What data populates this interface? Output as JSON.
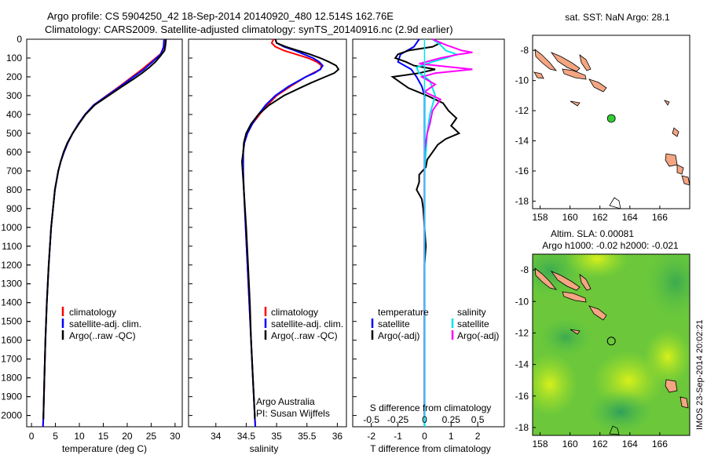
{
  "title": {
    "line1": "Argo profile: CS 5904250_42 18-Sep-2014 20140920_480 12.514S 162.76E",
    "line2": "Climatology: CARS2009. Satellite-adjusted climatology: synTS_20140916.nc (2.9d earlier)"
  },
  "colors": {
    "clim": "#ff0000",
    "sat": "#0000ff",
    "argo": "#000000",
    "sat_s": "#00e5ee",
    "argo_s": "#ff00ff",
    "land": "#f4a582"
  },
  "depth_ticks": [
    "0",
    "100",
    "200",
    "300",
    "400",
    "500",
    "600",
    "700",
    "800",
    "900",
    "1000",
    "1100",
    "1200",
    "1300",
    "1400",
    "1500",
    "1600",
    "1700",
    "1800",
    "1900",
    "2000"
  ],
  "chart_data": [
    {
      "type": "line",
      "id": "temperature",
      "xlabel": "temperature (deg C)",
      "ylabel": "depth",
      "xlim": [
        -1,
        31.5
      ],
      "ylim": [
        2060,
        0
      ],
      "xticks": [
        0,
        5,
        10,
        15,
        20,
        25,
        30
      ],
      "series": [
        {
          "name": "climatology",
          "color": "clim",
          "depth": [
            0,
            40,
            80,
            120,
            160,
            200,
            250,
            300,
            350,
            400,
            450,
            500,
            550,
            600,
            650,
            700,
            800,
            900,
            1000,
            1200,
            1400,
            1600,
            1800,
            2000,
            2060
          ],
          "values": [
            27.9,
            27.8,
            26.9,
            25.0,
            23.1,
            21.0,
            18.4,
            15.7,
            13.0,
            11.2,
            9.8,
            8.6,
            7.6,
            6.8,
            6.1,
            5.6,
            4.9,
            4.5,
            4.1,
            3.6,
            3.2,
            2.9,
            2.7,
            2.5,
            2.4
          ]
        },
        {
          "name": "satellite-adj. clim.",
          "color": "sat",
          "depth": [
            0,
            40,
            80,
            120,
            160,
            200,
            250,
            300,
            350,
            400,
            450,
            500,
            550,
            600,
            650,
            700,
            800,
            900,
            1000,
            1200,
            1400,
            1600,
            1800,
            2000,
            2060
          ],
          "values": [
            27.7,
            27.6,
            27.0,
            25.3,
            23.5,
            21.3,
            18.6,
            15.8,
            13.0,
            11.2,
            9.8,
            8.6,
            7.6,
            6.8,
            6.1,
            5.6,
            4.9,
            4.5,
            4.1,
            3.6,
            3.2,
            2.9,
            2.7,
            2.5,
            2.4
          ]
        },
        {
          "name": "Argo(..raw -QC)",
          "color": "argo",
          "depth": [
            0,
            30,
            60,
            90,
            120,
            150,
            180,
            210,
            250,
            300,
            350,
            400,
            450,
            500,
            550,
            600,
            650,
            700,
            800,
            900,
            1000,
            1200,
            1400,
            1600,
            1800,
            2000,
            2020
          ],
          "values": [
            28.1,
            28.0,
            27.8,
            26.9,
            25.9,
            24.6,
            23.1,
            21.4,
            19.0,
            16.1,
            13.2,
            11.3,
            9.9,
            8.6,
            7.5,
            6.7,
            6.1,
            5.6,
            4.9,
            4.5,
            4.1,
            3.6,
            3.2,
            2.9,
            2.7,
            2.5,
            2.5
          ]
        }
      ],
      "legend": [
        "climatology",
        "satellite-adj. clim.",
        "Argo(..raw -QC)"
      ]
    },
    {
      "type": "line",
      "id": "salinity",
      "xlabel": "salinity",
      "xlim": [
        33.55,
        36.15
      ],
      "ylim": [
        2060,
        0
      ],
      "xticks": [
        34,
        34.5,
        35,
        35.5,
        36
      ],
      "series": [
        {
          "name": "climatology",
          "color": "clim",
          "depth": [
            0,
            20,
            40,
            60,
            80,
            100,
            120,
            140,
            160,
            180,
            200,
            250,
            300,
            350,
            400,
            450,
            500,
            550,
            600,
            700,
            800,
            1000,
            1200,
            1400,
            1600,
            1800,
            2000,
            2060
          ],
          "values": [
            34.95,
            34.92,
            34.98,
            35.12,
            35.32,
            35.52,
            35.66,
            35.74,
            35.72,
            35.6,
            35.48,
            35.23,
            35.0,
            34.85,
            34.72,
            34.6,
            34.52,
            34.47,
            34.45,
            34.45,
            34.46,
            34.49,
            34.52,
            34.55,
            34.58,
            34.61,
            34.64,
            34.65
          ]
        },
        {
          "name": "satellite-adj. clim.",
          "color": "sat",
          "depth": [
            0,
            20,
            40,
            60,
            80,
            100,
            120,
            140,
            160,
            180,
            200,
            250,
            300,
            350,
            400,
            450,
            500,
            550,
            600,
            700,
            800,
            1000,
            1200,
            1400,
            1600,
            1800,
            2000,
            2060
          ],
          "values": [
            34.98,
            35.0,
            35.12,
            35.3,
            35.45,
            35.6,
            35.7,
            35.76,
            35.72,
            35.62,
            35.48,
            35.2,
            34.98,
            34.82,
            34.7,
            34.6,
            34.52,
            34.47,
            34.45,
            34.45,
            34.46,
            34.49,
            34.52,
            34.55,
            34.58,
            34.61,
            34.64,
            34.65
          ]
        },
        {
          "name": "Argo(..raw -QC)",
          "color": "argo",
          "depth": [
            0,
            20,
            40,
            60,
            80,
            100,
            120,
            140,
            160,
            180,
            200,
            230,
            260,
            300,
            350,
            400,
            450,
            500,
            550,
            600,
            650,
            700,
            800,
            900,
            1000,
            1200,
            1400,
            1600,
            1800,
            2000,
            2020
          ],
          "values": [
            34.98,
            35.0,
            35.15,
            35.35,
            35.55,
            35.72,
            35.86,
            35.98,
            36.02,
            35.95,
            35.8,
            35.58,
            35.38,
            35.12,
            34.88,
            34.7,
            34.58,
            34.5,
            34.46,
            34.45,
            34.43,
            34.44,
            34.46,
            34.48,
            34.5,
            34.53,
            34.56,
            34.58,
            34.61,
            34.64,
            34.64
          ]
        }
      ],
      "legend": [
        "climatology",
        "satellite-adj. clim.",
        "Argo(..raw -QC)"
      ],
      "annotation": [
        "Argo Australia",
        "PI: Susan Wijffels"
      ]
    },
    {
      "type": "line",
      "id": "difference",
      "xlabel": "T difference from climatology",
      "xlabel_top": "S difference from climatology",
      "xlim": [
        -2.7,
        3.0
      ],
      "ylim": [
        2060,
        0
      ],
      "xticks": [
        -2,
        -1,
        0,
        1,
        2
      ],
      "top_ticks": [
        "-0.5",
        "-0.25",
        "0",
        "0.25",
        "0.5"
      ],
      "top_tick_pos": [
        -2,
        -1,
        0,
        1,
        2
      ],
      "series": [
        {
          "name": "satellite",
          "group": "temperature",
          "color": "sat",
          "depth": [
            0,
            40,
            80,
            120,
            160,
            200,
            250,
            300,
            400,
            500,
            600,
            700,
            800,
            1000,
            1500,
            2000,
            2060
          ],
          "values": [
            -0.2,
            -0.4,
            -0.9,
            -1.0,
            -0.5,
            -0.3,
            -0.1,
            0.0,
            0.0,
            0.0,
            0.0,
            0.0,
            0.0,
            0.0,
            0.0,
            0.0,
            0.0
          ]
        },
        {
          "name": "Argo(-adj)",
          "group": "temperature",
          "color": "argo",
          "depth": [
            0,
            20,
            40,
            60,
            80,
            100,
            120,
            140,
            160,
            180,
            200,
            230,
            260,
            300,
            340,
            380,
            420,
            460,
            500,
            530,
            560,
            600,
            640,
            680,
            720,
            760,
            800,
            850,
            900,
            1000,
            1100,
            1200,
            1500,
            1800,
            2000
          ],
          "values": [
            0.3,
            0.6,
            0.3,
            -0.6,
            -1.0,
            -1.1,
            -0.7,
            -0.4,
            0.4,
            -0.2,
            -1.2,
            -0.9,
            -0.6,
            0.1,
            0.7,
            0.9,
            1.2,
            1.0,
            1.3,
            0.8,
            0.5,
            0.3,
            0.1,
            0.05,
            -0.2,
            -0.2,
            -0.3,
            -0.1,
            -0.05,
            0.0,
            0.05,
            0.0,
            0.0,
            0.0,
            0.0
          ]
        },
        {
          "name": "satellite",
          "group": "salinity",
          "color": "sat_s",
          "depth": [
            0,
            30,
            60,
            80,
            100,
            120,
            150,
            180,
            220,
            260,
            300,
            350,
            400,
            500,
            700,
            1000,
            1500,
            2000,
            2060
          ],
          "values": [
            0.3,
            0.6,
            0.8,
            1.2,
            0.8,
            0.3,
            -0.3,
            -0.2,
            0.2,
            0.3,
            0.4,
            0.3,
            0.2,
            0.1,
            0.0,
            0.0,
            0.0,
            0.0,
            0.0
          ]
        },
        {
          "name": "Argo(-adj)",
          "group": "salinity",
          "color": "argo_s",
          "depth": [
            0,
            30,
            60,
            70,
            80,
            100,
            130,
            160,
            180,
            200,
            240,
            280,
            320,
            380,
            450,
            500,
            600,
            700,
            1000,
            1500,
            2000
          ],
          "values": [
            0.3,
            0.8,
            1.4,
            1.8,
            1.3,
            0.6,
            -0.2,
            1.8,
            0.4,
            -0.1,
            0.4,
            0.0,
            0.6,
            0.3,
            0.2,
            0.1,
            0.0,
            0.0,
            0.0,
            0.0,
            0.0
          ]
        }
      ],
      "legend_groups": [
        "temperature",
        "salinity"
      ],
      "legend": [
        "satellite",
        "Argo(-adj)",
        "satellite",
        "Argo(-adj)"
      ]
    },
    {
      "type": "map",
      "id": "sst_map",
      "title": "sat. SST: NaN Argo: 28.1",
      "xlim": [
        157.5,
        168
      ],
      "ylim": [
        -18.5,
        -7
      ],
      "xticks": [
        158,
        160,
        162,
        164,
        166
      ],
      "yticks": [
        -8,
        -10,
        -12,
        -14,
        -16,
        -18
      ],
      "argo_lon": 162.76,
      "argo_lat": -12.514
    },
    {
      "type": "map",
      "id": "sla_map",
      "title": "Altim. SLA: 0.00081",
      "subtitle": "Argo h1000: -0.02 h2000: -0.021",
      "xlim": [
        157.5,
        168
      ],
      "ylim": [
        -18.5,
        -7
      ],
      "xticks": [
        158,
        160,
        162,
        164,
        166
      ],
      "yticks": [
        -8,
        -10,
        -12,
        -14,
        -16,
        -18
      ],
      "argo_lon": 162.76,
      "argo_lat": -12.514
    }
  ],
  "footer": {
    "imos": "IMOS 23-Sep-2014 20:02:21"
  }
}
